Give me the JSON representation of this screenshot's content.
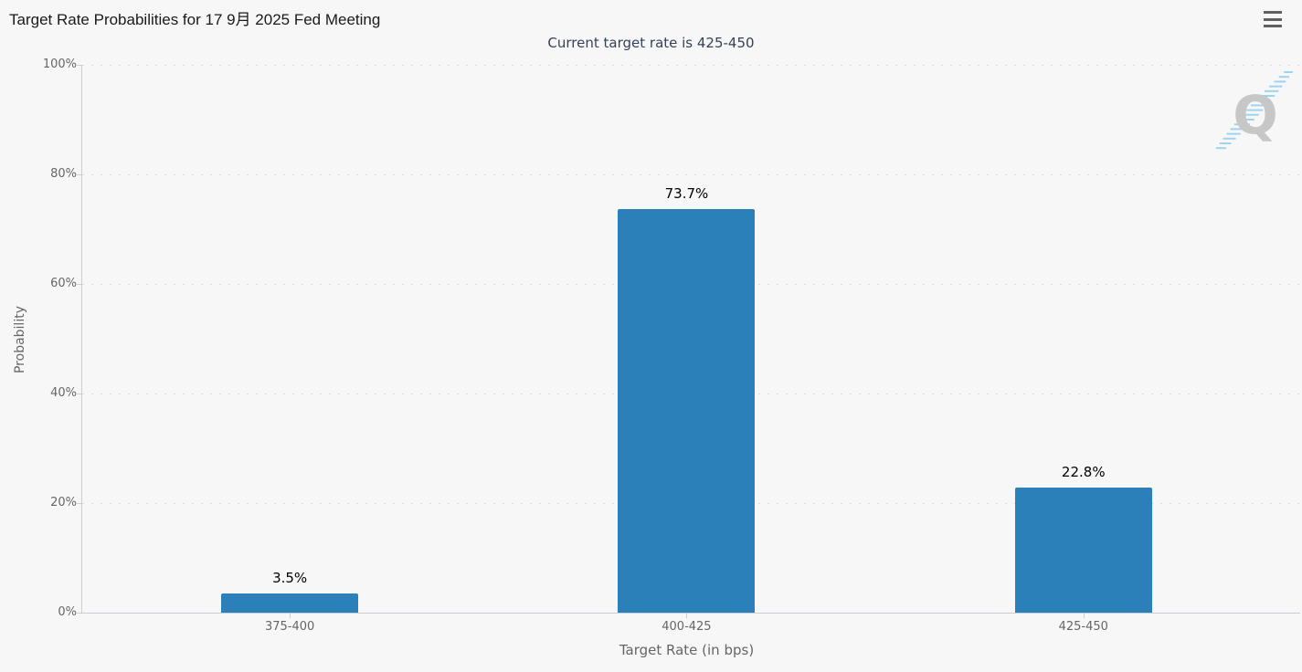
{
  "colors": {
    "bg": "#f7f7f7",
    "accent": "#2b80b9",
    "grid": "#d9d9d9",
    "axis": "#c9ced4",
    "muted": "#666666",
    "title": "#1a1a1a",
    "subtitle": "#35425a",
    "wm-gray": "#c7c7c7",
    "wm-blue": "#9fd4ee",
    "burger": "#616161"
  },
  "header": {
    "menu_icon": "hamburger-icon"
  },
  "chart_data": {
    "type": "bar",
    "title": "Target Rate Probabilities for 17 9月 2025 Fed Meeting",
    "subtitle": "Current target rate is 425-450",
    "categories": [
      "375-400",
      "400-425",
      "425-450"
    ],
    "values": [
      3.5,
      73.7,
      22.8
    ],
    "value_labels": [
      "3.5%",
      "73.7%",
      "22.8%"
    ],
    "xlabel": "Target Rate (in bps)",
    "ylabel": "Probability",
    "ylim": [
      0,
      100
    ],
    "yticks": [
      0,
      20,
      40,
      60,
      80,
      100
    ],
    "ytick_labels": [
      "0%",
      "20%",
      "40%",
      "60%",
      "80%",
      "100%"
    ],
    "grid": "horizontal-dotted",
    "legend": "none",
    "bar_color": "#2b80b9",
    "watermark_letter": "Q"
  }
}
